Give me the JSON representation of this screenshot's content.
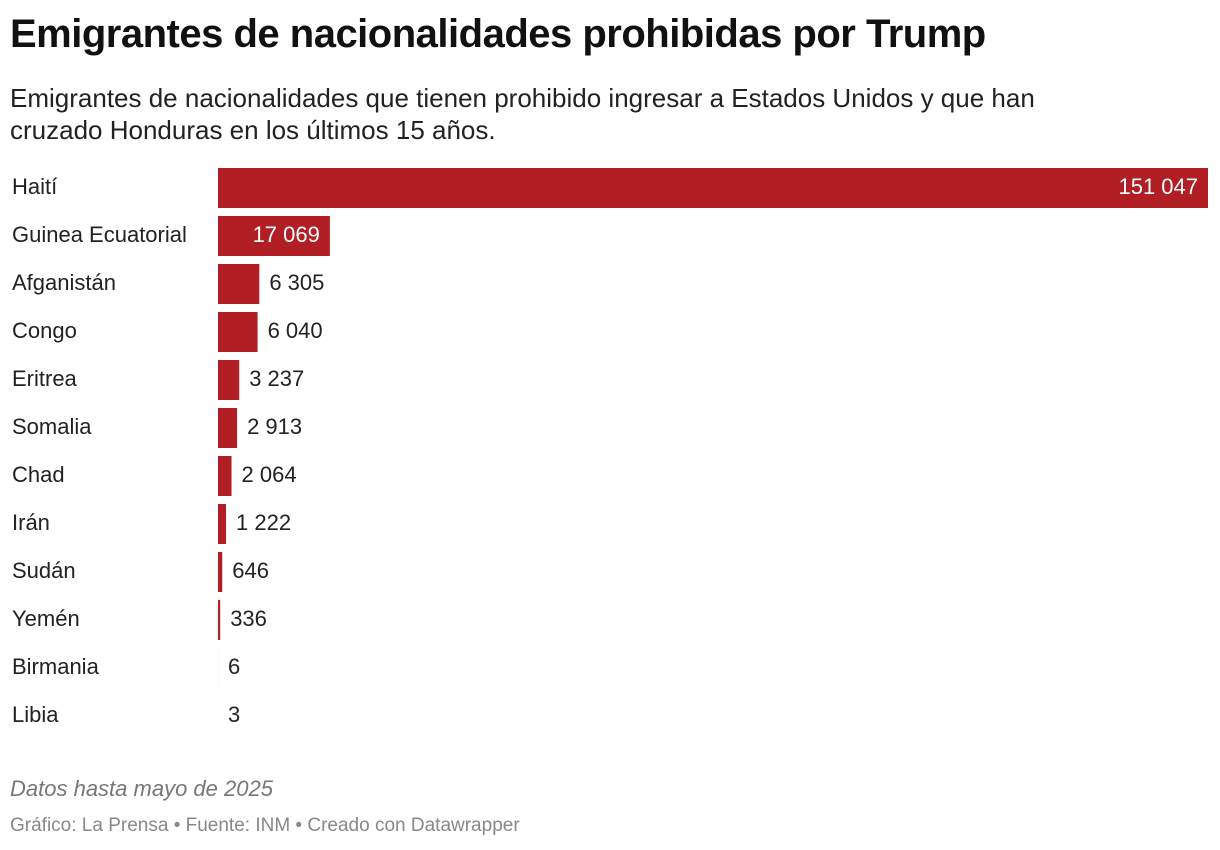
{
  "chart_data": {
    "type": "bar",
    "orientation": "horizontal",
    "title": "Emigrantes de nacionalidades prohibidas por Trump",
    "subtitle": "Emigrantes de nacionalidades que tienen prohibido ingresar a Estados Unidos y que han cruzado Honduras en los últimos 15 años.",
    "categories": [
      "Haití",
      "Guinea Ecuatorial",
      "Afganistán",
      "Congo",
      "Eritrea",
      "Somalia",
      "Chad",
      "Irán",
      "Sudán",
      "Yemén",
      "Birmania",
      "Libia"
    ],
    "values": [
      151047,
      17069,
      6305,
      6040,
      3237,
      2913,
      2064,
      1222,
      646,
      336,
      6,
      3
    ],
    "value_labels": [
      "151 047",
      "17 069",
      "6 305",
      "6 040",
      "3 237",
      "2 913",
      "2 064",
      "1 222",
      "646",
      "336",
      "6",
      "3"
    ],
    "color": "#b11f24",
    "note": "Datos hasta mayo de 2025",
    "credits": "Gráfico: La Prensa • Fuente: INM • Creado con Datawrapper"
  }
}
